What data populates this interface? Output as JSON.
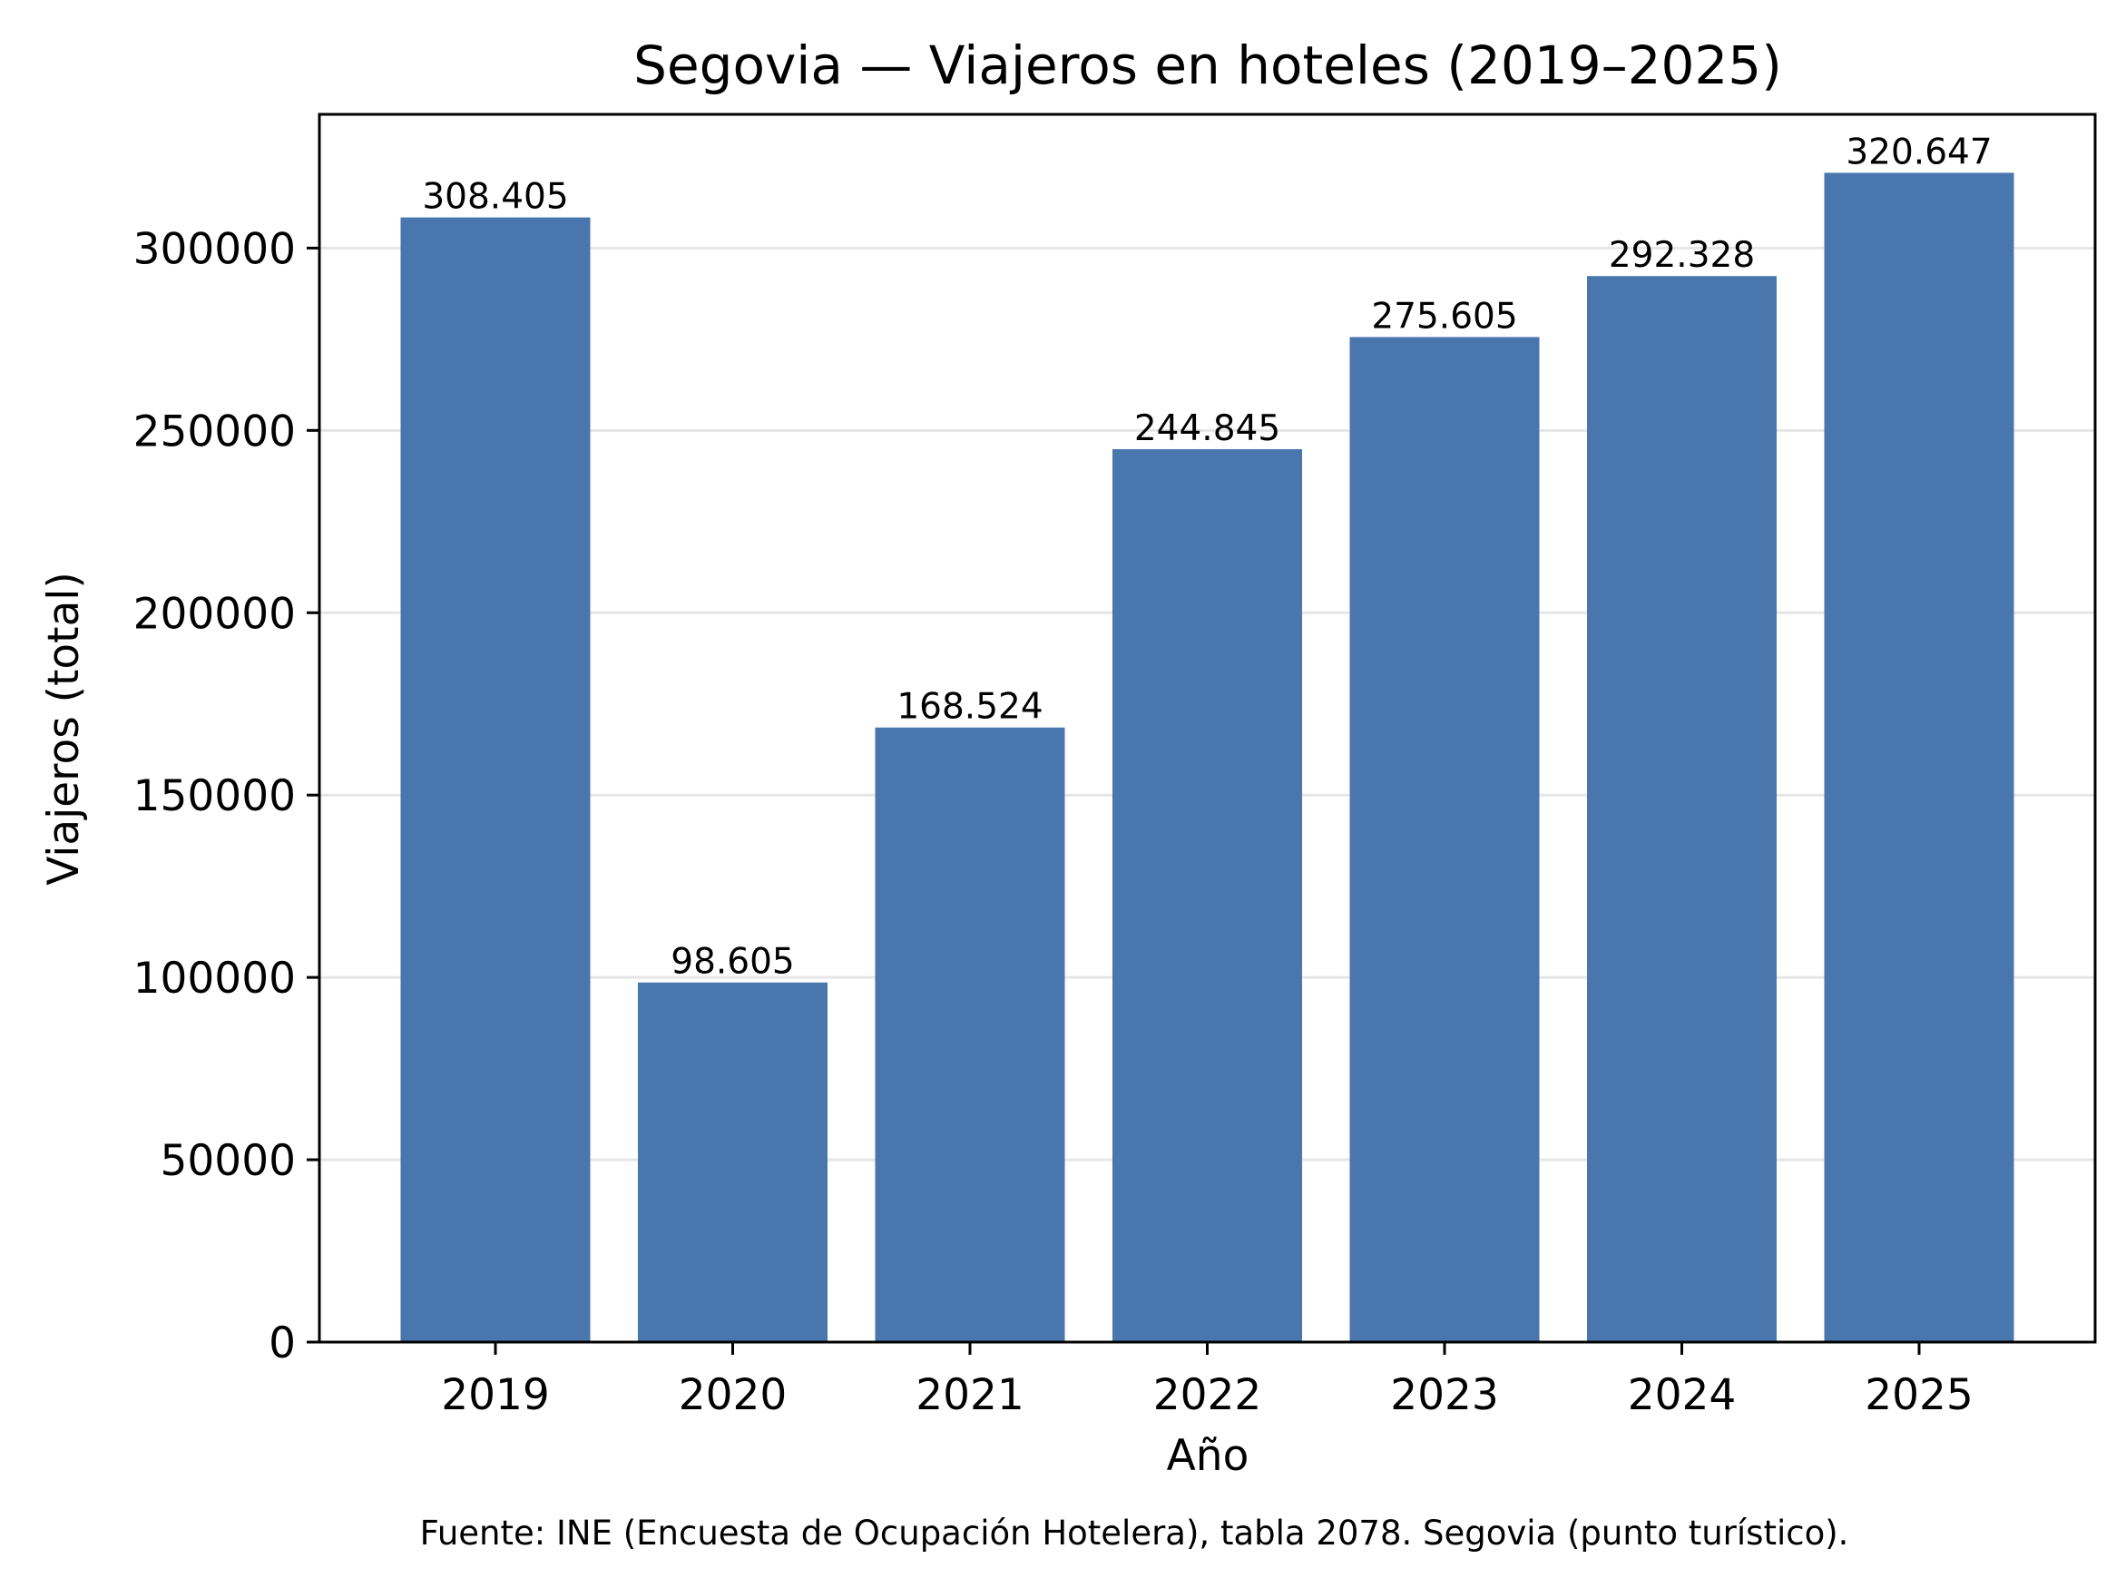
{
  "chart_data": {
    "type": "bar",
    "title": "Segovia — Viajeros en hoteles (2019–2025)",
    "xlabel": "Año",
    "ylabel": "Viajeros (total)",
    "categories": [
      "2019",
      "2020",
      "2021",
      "2022",
      "2023",
      "2024",
      "2025"
    ],
    "values": [
      308405,
      98605,
      168524,
      244845,
      275605,
      292328,
      320647
    ],
    "value_labels": [
      "308.405",
      "98.605",
      "168.524",
      "244.845",
      "275.605",
      "292.328",
      "320.647"
    ],
    "ylim": [
      0,
      336674
    ],
    "yticks": [
      0,
      50000,
      100000,
      150000,
      200000,
      250000,
      300000
    ],
    "ytick_labels": [
      "0",
      "50000",
      "100000",
      "150000",
      "200000",
      "250000",
      "300000"
    ],
    "grid": "horizontal",
    "legend": "none",
    "bar_color": "#4a76ae",
    "source": "Fuente: INE (Encuesta de Ocupación Hotelera), tabla 2078. Segovia (punto turístico)."
  }
}
